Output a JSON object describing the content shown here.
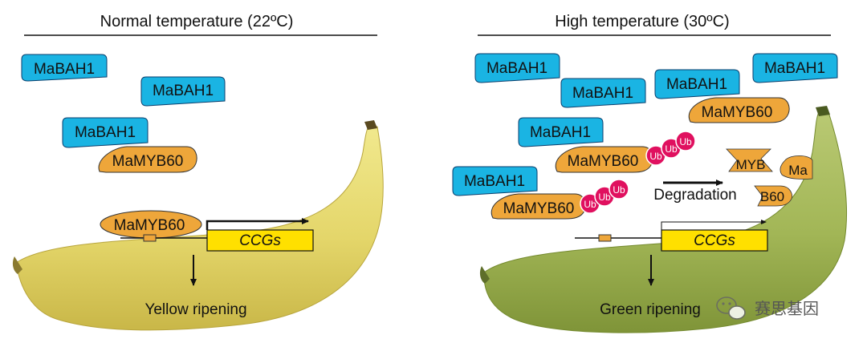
{
  "left_panel": {
    "title": "Normal temperature (22ºC)",
    "bah_labels": [
      "MaBAH1",
      "MaBAH1",
      "MaBAH1"
    ],
    "myb_complex_label": "MaMYB60",
    "myb_bound_label": "MaMYB60",
    "gene_label": "CCGs",
    "outcome": "Yellow ripening"
  },
  "right_panel": {
    "title": "High temperature (30ºC)",
    "bah_labels": [
      "MaBAH1",
      "MaBAH1",
      "MaBAH1",
      "MaBAH1",
      "MaBAH1",
      "MaBAH1"
    ],
    "myb_labels": [
      "MaMYB60",
      "MaMYB60",
      "MaMYB60"
    ],
    "ub_label": "Ub",
    "degradation_label": "Degradation",
    "fragment_labels": [
      "MYB",
      "Ma",
      "B60"
    ],
    "gene_label": "CCGs",
    "outcome": "Green ripening"
  },
  "watermark": {
    "text": "赛思基因"
  },
  "colors": {
    "bah_fill": "#1ab4e3",
    "myb_fill": "#eea63a",
    "ub_fill": "#e0105f",
    "gene_fill": "#ffe000",
    "yellow_banana": "#e9dd73",
    "green_banana": "#a3b957"
  }
}
